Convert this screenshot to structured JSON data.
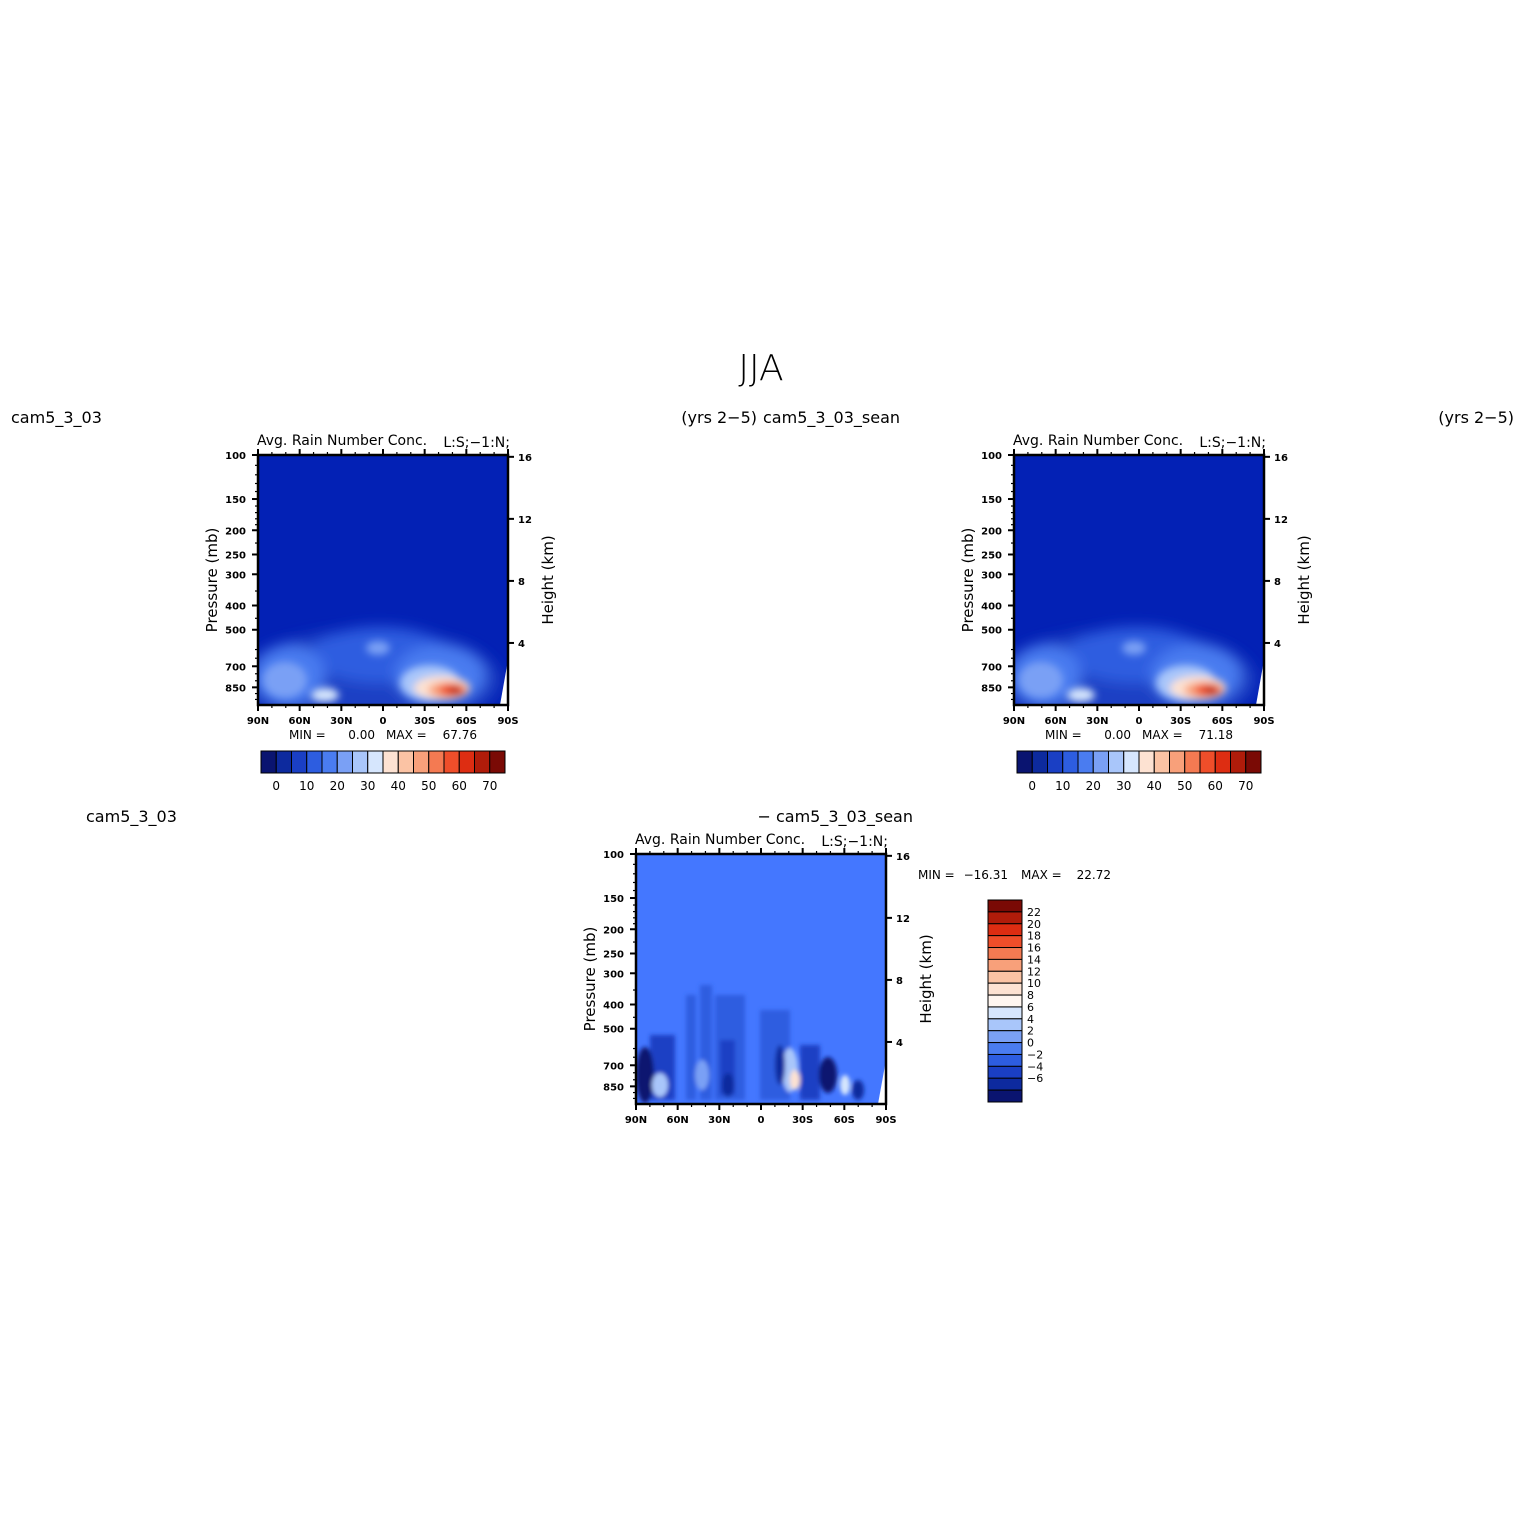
{
  "page": {
    "title": "JJA"
  },
  "panels": [
    {
      "id": "top-left",
      "case_label_left": "cam5_3_03",
      "case_label_right": "(yrs 2−5)",
      "plot_title": "Avg. Rain Number Conc.",
      "plot_title_right": "L:S;−1:N;",
      "stats": {
        "min_label": "MIN =",
        "min": "0.00",
        "max_label": "MAX =",
        "max": "67.76"
      }
    },
    {
      "id": "top-right",
      "case_label_left": "cam5_3_03_sean",
      "case_label_right": "(yrs 2−5)",
      "plot_title": "Avg. Rain Number Conc.",
      "plot_title_right": "L:S;−1:N;",
      "stats": {
        "min_label": "MIN =",
        "min": "0.00",
        "max_label": "MAX =",
        "max": "71.18"
      }
    },
    {
      "id": "bottom-diff",
      "case_label_left": "cam5_3_03",
      "case_label_right": "− cam5_3_03_sean",
      "plot_title": "Avg. Rain Number Conc.",
      "plot_title_right": "L:S;−1:N;",
      "stats": {
        "min_label": "MIN =",
        "min": "−16.31",
        "max_label": "MAX =",
        "max": "22.72"
      }
    }
  ],
  "chart_data": [
    {
      "type": "heatmap",
      "title": "Avg. Rain Number Conc.",
      "xlabel": "",
      "ylabel": "Pressure (mb)",
      "y2label": "Height (km)",
      "x_ticks": [
        "90N",
        "60N",
        "30N",
        "0",
        "30S",
        "60S",
        "90S"
      ],
      "y_ticks": [
        100,
        150,
        200,
        250,
        300,
        400,
        500,
        700,
        850
      ],
      "y2_ticks": [
        4,
        8,
        12,
        16
      ],
      "y_scale": "log",
      "ylim": [
        100,
        1000
      ],
      "min": 0.0,
      "max": 67.76,
      "colorbar_labels": [
        "0",
        "10",
        "20",
        "30",
        "40",
        "50",
        "60",
        "70"
      ],
      "colorbar_colors": [
        "#0a1470",
        "#0d2a9e",
        "#1a3fc4",
        "#2d5de0",
        "#4a7cf0",
        "#7aa0f5",
        "#a9c6fa",
        "#d6e6fd",
        "#fde2d2",
        "#fbc3a4",
        "#f8a07a",
        "#f47a52",
        "#ef4e2a",
        "#dd2d12",
        "#b01c0a",
        "#7a0a05"
      ],
      "background_color": "#0321b5"
    },
    {
      "type": "heatmap",
      "title": "Avg. Rain Number Conc.",
      "xlabel": "",
      "ylabel": "Pressure (mb)",
      "y2label": "Height (km)",
      "x_ticks": [
        "90N",
        "60N",
        "30N",
        "0",
        "30S",
        "60S",
        "90S"
      ],
      "y_ticks": [
        100,
        150,
        200,
        250,
        300,
        400,
        500,
        700,
        850
      ],
      "y2_ticks": [
        4,
        8,
        12,
        16
      ],
      "y_scale": "log",
      "ylim": [
        100,
        1000
      ],
      "min": 0.0,
      "max": 71.18,
      "colorbar_labels": [
        "0",
        "10",
        "20",
        "30",
        "40",
        "50",
        "60",
        "70"
      ],
      "colorbar_colors": [
        "#0a1470",
        "#0d2a9e",
        "#1a3fc4",
        "#2d5de0",
        "#4a7cf0",
        "#7aa0f5",
        "#a9c6fa",
        "#d6e6fd",
        "#fde2d2",
        "#fbc3a4",
        "#f8a07a",
        "#f47a52",
        "#ef4e2a",
        "#dd2d12",
        "#b01c0a",
        "#7a0a05"
      ],
      "background_color": "#0321b5"
    },
    {
      "type": "heatmap",
      "title": "Avg. Rain Number Conc.",
      "xlabel": "",
      "ylabel": "Pressure (mb)",
      "y2label": "Height (km)",
      "x_ticks": [
        "90N",
        "60N",
        "30N",
        "0",
        "30S",
        "60S",
        "90S"
      ],
      "y_ticks": [
        100,
        150,
        200,
        250,
        300,
        400,
        500,
        700,
        850
      ],
      "y2_ticks": [
        4,
        8,
        12,
        16
      ],
      "y_scale": "log",
      "ylim": [
        100,
        1000
      ],
      "min": -16.31,
      "max": 22.72,
      "colorbar_labels": [
        "22",
        "20",
        "18",
        "16",
        "14",
        "12",
        "10",
        "8",
        "6",
        "4",
        "2",
        "0",
        "−2",
        "−4",
        "−6"
      ],
      "colorbar_colors": [
        "#7a0a05",
        "#b01c0a",
        "#dd2d12",
        "#ef4e2a",
        "#f47a52",
        "#f8a07a",
        "#fbc3a4",
        "#fde2d2",
        "#fff6f0",
        "#d6e6fd",
        "#a9c6fa",
        "#7aa0f5",
        "#4a7cf0",
        "#2d5de0",
        "#1a3fc4",
        "#0d2a9e",
        "#0a1470"
      ],
      "background_color": "#4477ff"
    }
  ]
}
